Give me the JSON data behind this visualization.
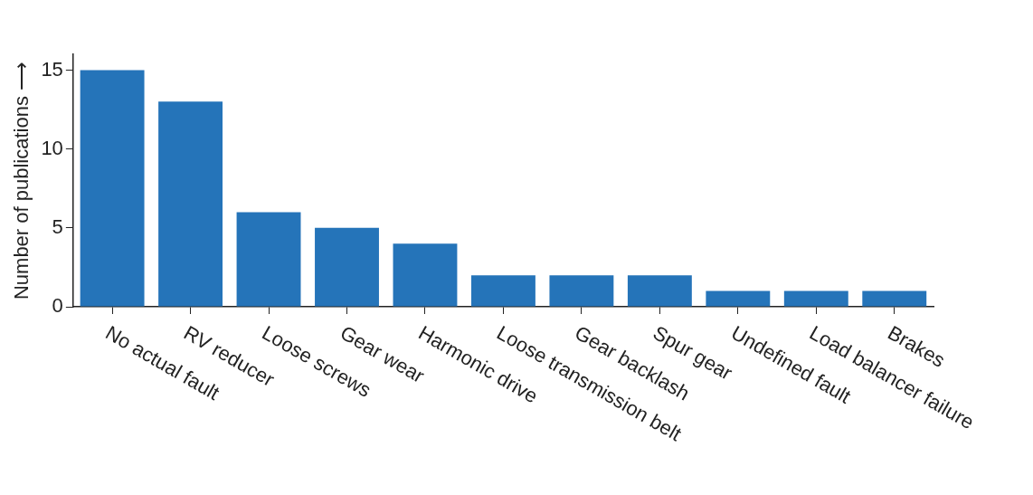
{
  "chart_data": {
    "type": "bar",
    "ylabel": "Number of publications ⟶",
    "categories": [
      "No actual fault",
      "RV reducer",
      "Loose screws",
      "Gear wear",
      "Harmonic drive",
      "Loose transmission belt",
      "Gear backlash",
      "Spur gear",
      "Undefined fault",
      "Load balancer failure",
      "Brakes"
    ],
    "values": [
      15,
      13,
      6,
      5,
      4,
      2,
      2,
      2,
      1,
      1,
      1
    ],
    "color": "#2574b9",
    "ylim": [
      0,
      16
    ],
    "yticks": [
      0,
      5,
      10,
      15
    ],
    "grid": false,
    "legend": false
  }
}
